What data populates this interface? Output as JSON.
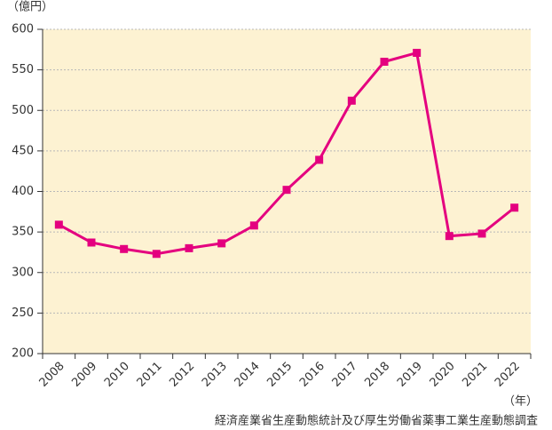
{
  "chart_data": {
    "type": "line",
    "y_unit": "（億円）",
    "x_unit": "（年）",
    "source": "経済産業省生産動態統計及び厚生労働省薬事工業生産動態調査",
    "categories": [
      "2008",
      "2009",
      "2010",
      "2011",
      "2012",
      "2013",
      "2014",
      "2015",
      "2016",
      "2017",
      "2018",
      "2019",
      "2020",
      "2021",
      "2022"
    ],
    "series": [
      {
        "color": "#e4007f",
        "values": [
          359,
          337,
          329,
          323,
          330,
          336,
          358,
          402,
          439,
          512,
          560,
          571,
          345,
          348,
          380
        ]
      }
    ],
    "ylim": [
      200,
      600
    ],
    "yticks": [
      200,
      250,
      300,
      350,
      400,
      450,
      500,
      550,
      600
    ],
    "grid": true
  }
}
